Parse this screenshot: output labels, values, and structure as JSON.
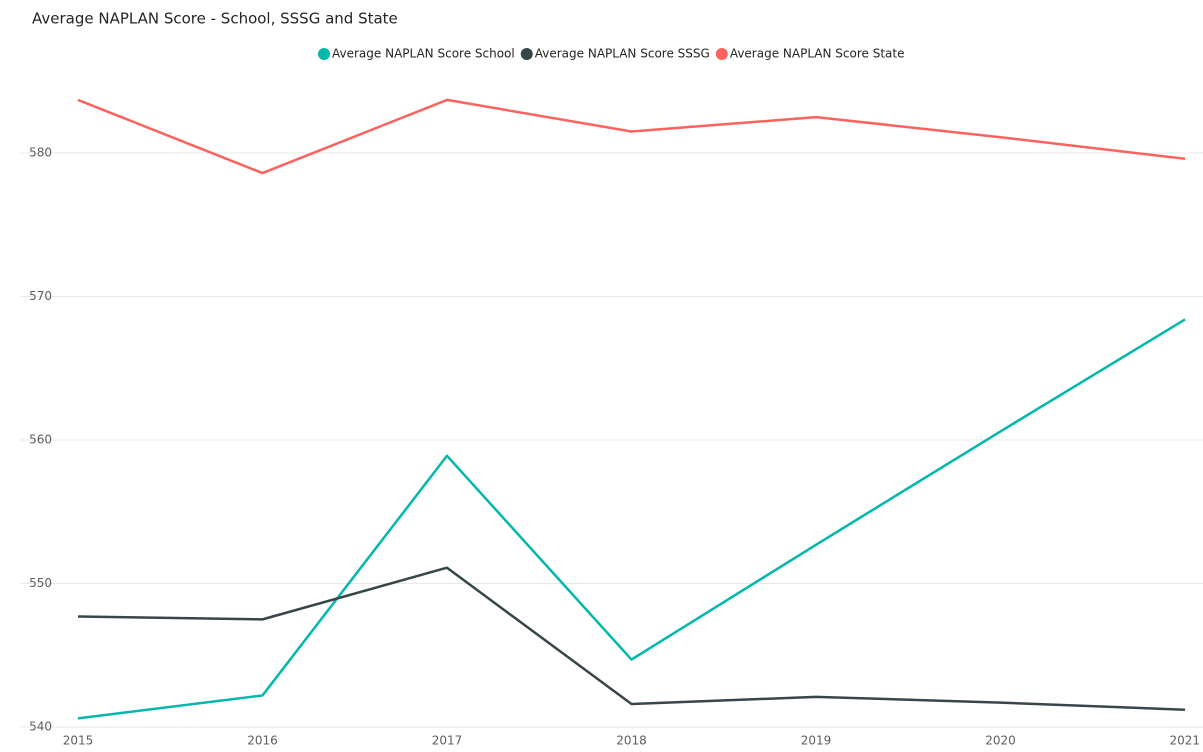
{
  "chart_data": {
    "type": "line",
    "title": "Average NAPLAN Score - School, SSSG and State",
    "x": [
      2015,
      2016,
      2017,
      2018,
      2019,
      2020,
      2021
    ],
    "series": [
      {
        "name": "Average NAPLAN Score School",
        "color": "#01B8AA",
        "values": [
          540.6,
          542.2,
          558.9,
          544.7,
          552.7,
          560.6,
          568.4
        ]
      },
      {
        "name": "Average NAPLAN Score SSSG",
        "color": "#374649",
        "values": [
          547.7,
          547.5,
          551.1,
          541.6,
          542.1,
          541.7,
          541.2
        ]
      },
      {
        "name": "Average NAPLAN Score State",
        "color": "#FD625E",
        "values": [
          583.7,
          578.6,
          583.7,
          581.5,
          582.5,
          581.1,
          579.6
        ]
      }
    ],
    "xlim": [
      2015,
      2021
    ],
    "xticks": [
      2015,
      2016,
      2017,
      2018,
      2019,
      2020,
      2021
    ],
    "ylim": [
      540,
      585
    ],
    "yticks": [
      540,
      550,
      560,
      570,
      580
    ],
    "grid": true
  }
}
